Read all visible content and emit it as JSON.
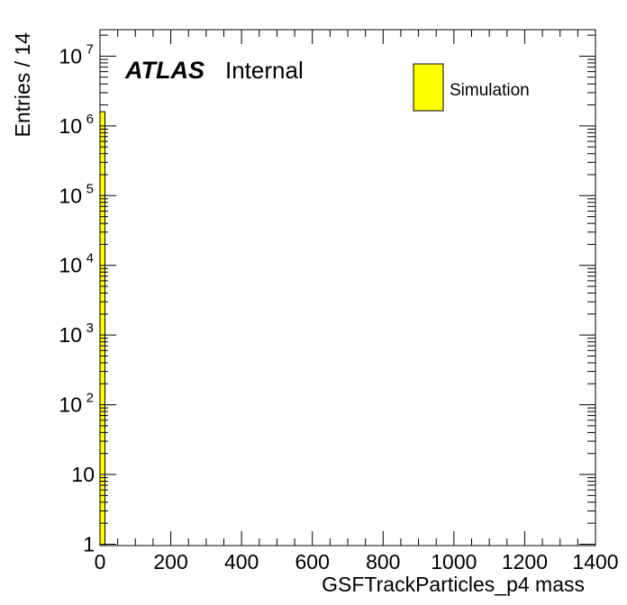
{
  "chart_data": {
    "type": "bar",
    "xlabel": "GSFTrackParticles_p4 mass",
    "ylabel": "Entries / 14",
    "xlim": [
      0,
      1400
    ],
    "ylim_log10": [
      -0.02,
      7.38
    ],
    "yscale": "log",
    "bin_width": 14,
    "x_ticks": [
      "0",
      "200",
      "400",
      "600",
      "800",
      "1000",
      "1200",
      "1400"
    ],
    "x_tick_values": [
      0,
      200,
      400,
      600,
      800,
      1000,
      1200,
      1400
    ],
    "y_ticks": [
      {
        "value": 1,
        "base": "1",
        "exp": ""
      },
      {
        "value": 10,
        "base": "10",
        "exp": ""
      },
      {
        "value": 100,
        "base": "10",
        "exp": "2"
      },
      {
        "value": 1000,
        "base": "10",
        "exp": "3"
      },
      {
        "value": 10000,
        "base": "10",
        "exp": "4"
      },
      {
        "value": 100000,
        "base": "10",
        "exp": "5"
      },
      {
        "value": 1000000,
        "base": "10",
        "exp": "6"
      },
      {
        "value": 10000000,
        "base": "10",
        "exp": "7"
      }
    ],
    "bins": [
      {
        "x_low": 0,
        "x_high": 14,
        "value": 1600000
      }
    ],
    "fill_color": "#ffff00",
    "legend": {
      "position": "top-right",
      "entries": [
        {
          "label": "Simulation",
          "color": "#ffff00"
        }
      ]
    },
    "atlas_label": {
      "bold": "ATLAS",
      "text": "Internal"
    },
    "grid": false
  }
}
